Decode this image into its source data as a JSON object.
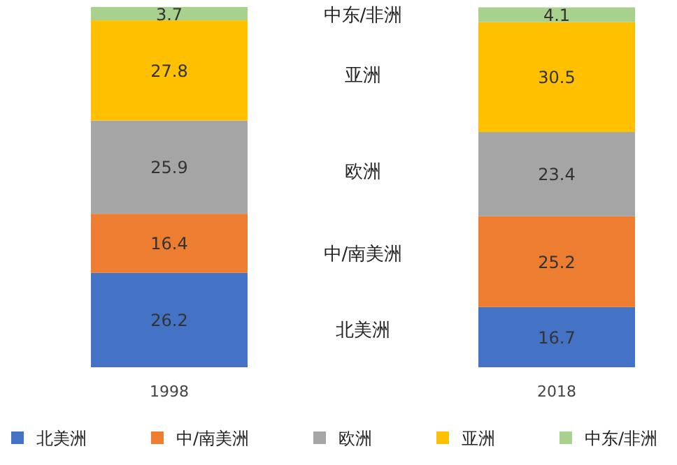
{
  "chart_data": {
    "type": "bar",
    "stacked": true,
    "categories": [
      "1998",
      "2018"
    ],
    "series": [
      {
        "name": "北美洲",
        "color": "#4472c4",
        "values": [
          26.2,
          16.7
        ]
      },
      {
        "name": "中/南美洲",
        "color": "#ed7d31",
        "values": [
          16.4,
          25.2
        ]
      },
      {
        "name": "欧洲",
        "color": "#a5a5a5",
        "values": [
          25.9,
          23.4
        ]
      },
      {
        "name": "亚洲",
        "color": "#ffc000",
        "values": [
          27.8,
          30.5
        ]
      },
      {
        "name": "中东/非洲",
        "color": "#a9d18e",
        "values": [
          3.7,
          4.1
        ]
      }
    ],
    "data_labels": true,
    "legend": "bottom",
    "grid": false
  }
}
